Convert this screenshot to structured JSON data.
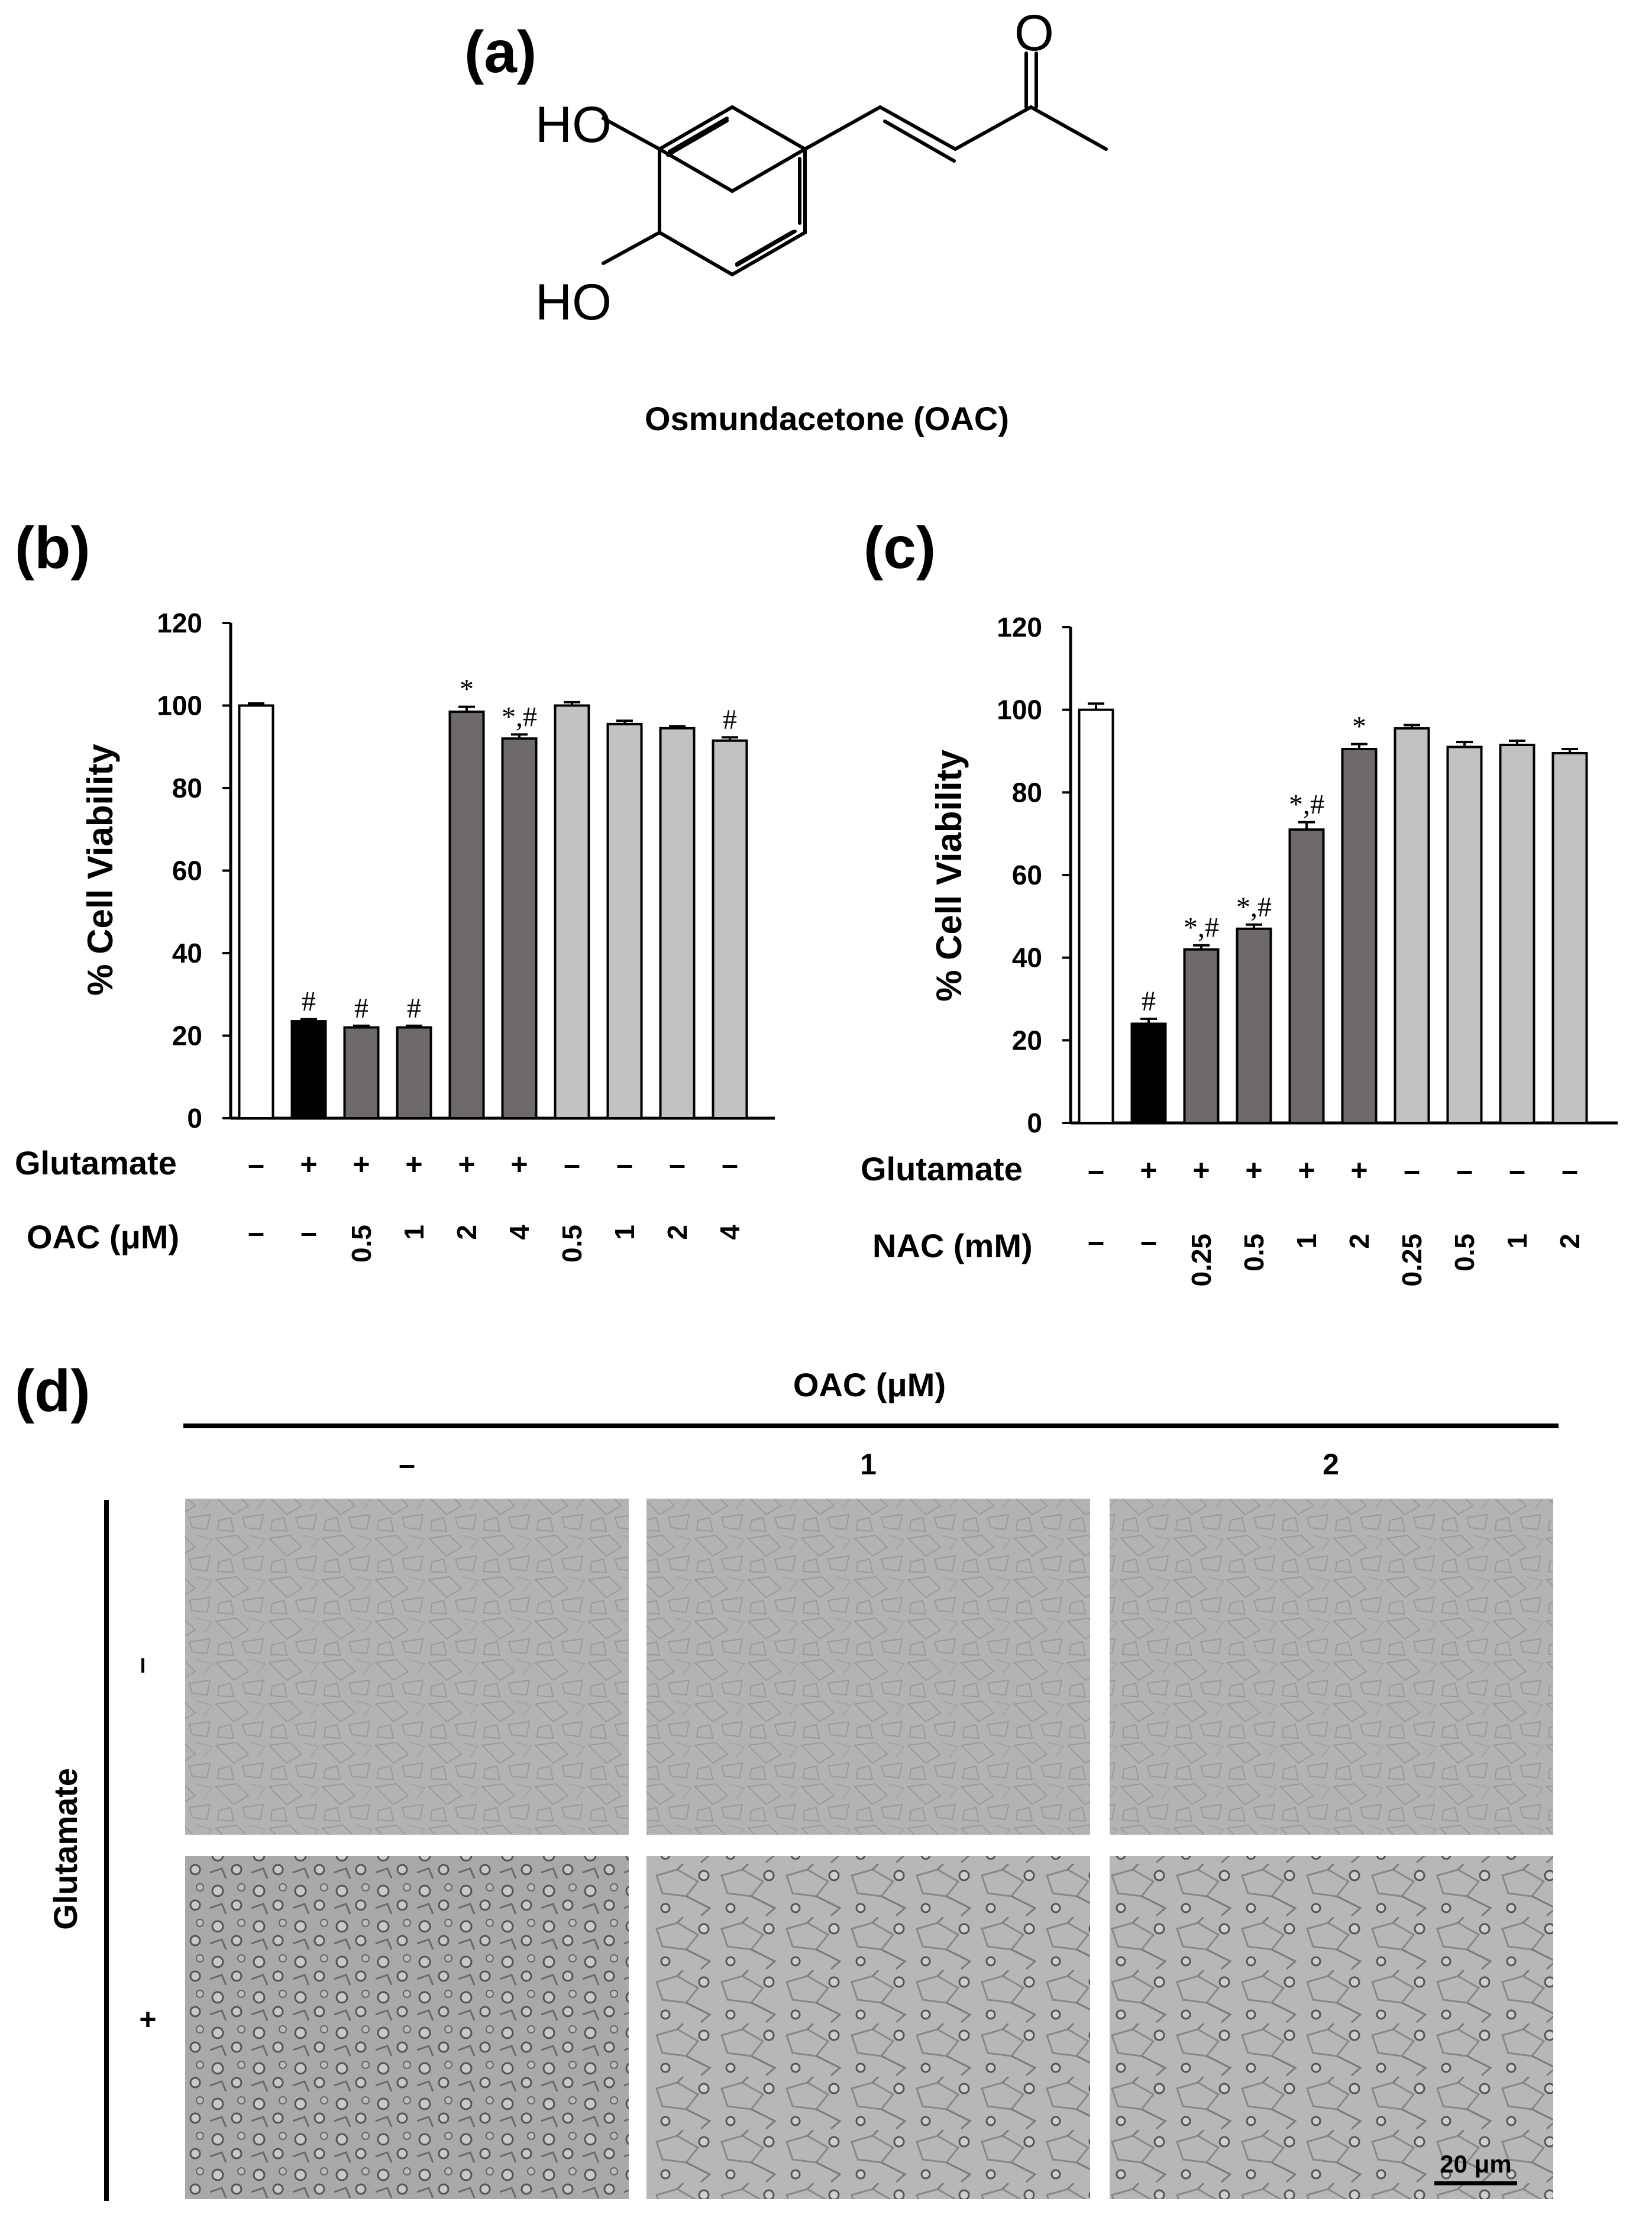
{
  "panels": {
    "a": "(a)",
    "b": "(b)",
    "c": "(c)",
    "d": "(d)"
  },
  "molecule": {
    "name": "Osmundacetone (OAC)",
    "atoms": {
      "oxygen": "O",
      "hydroxyl_top": "HO",
      "hydroxyl_bottom": "HO"
    }
  },
  "chart_data": [
    {
      "id": "b",
      "type": "bar",
      "ylabel": "% Cell Viability",
      "ylim": [
        0,
        120
      ],
      "yticks": [
        0,
        20,
        40,
        60,
        80,
        100,
        120
      ],
      "ytick_labels": [
        "0",
        "20",
        "40",
        "60",
        "80",
        "100",
        "120"
      ],
      "row_labels": [
        "Glutamate",
        "OAC (μM)"
      ],
      "glutamate": [
        "–",
        "+",
        "+",
        "+",
        "+",
        "+",
        "–",
        "–",
        "–",
        "–"
      ],
      "treatment": [
        "–",
        "–",
        "0.5",
        "1",
        "2",
        "4",
        "0.5",
        "1",
        "2",
        "4"
      ],
      "values": [
        100,
        23.5,
        22,
        22,
        98.5,
        92,
        100,
        95.5,
        94.5,
        91.5
      ],
      "errors": [
        0.5,
        0.5,
        0.4,
        0.4,
        1.2,
        1.0,
        0.8,
        0.8,
        0.5,
        0.8
      ],
      "significance": [
        "",
        "#",
        "#",
        "#",
        "*",
        "*,#",
        "",
        "",
        "",
        "#"
      ],
      "colors": [
        "#ffffff",
        "#000000",
        "#6d6a69",
        "#6d6a69",
        "#6d6a69",
        "#6d6a69",
        "#c2c2c2",
        "#c2c2c2",
        "#c2c2c2",
        "#c2c2c2"
      ]
    },
    {
      "id": "c",
      "type": "bar",
      "ylabel": "% Cell Viability",
      "ylim": [
        0,
        120
      ],
      "yticks": [
        0,
        20,
        40,
        60,
        80,
        100,
        120
      ],
      "ytick_labels": [
        "0",
        "20",
        "40",
        "60",
        "80",
        "100",
        "120"
      ],
      "row_labels": [
        "Glutamate",
        "NAC (mM)"
      ],
      "glutamate": [
        "–",
        "+",
        "+",
        "+",
        "+",
        "+",
        "–",
        "–",
        "–",
        "–"
      ],
      "treatment": [
        "–",
        "–",
        "0.25",
        "0.5",
        "1",
        "2",
        "0.25",
        "0.5",
        "1",
        "2"
      ],
      "values": [
        100,
        24,
        42,
        47,
        71,
        90.5,
        95.5,
        91,
        91.5,
        89.5
      ],
      "errors": [
        1.5,
        1.2,
        1.0,
        1.0,
        1.8,
        1.2,
        0.8,
        1.2,
        1.0,
        1.0
      ],
      "significance": [
        "",
        "#",
        "*,#",
        "*,#",
        "*,#",
        "*",
        "",
        "",
        "",
        ""
      ],
      "colors": [
        "#ffffff",
        "#000000",
        "#6d6a69",
        "#6d6a69",
        "#6d6a69",
        "#6d6a69",
        "#c2c2c2",
        "#c2c2c2",
        "#c2c2c2",
        "#c2c2c2"
      ]
    }
  ],
  "micrographs": {
    "header": "OAC (μM)",
    "columns": [
      "–",
      "1",
      "2"
    ],
    "row_axis_label": "Glutamate",
    "rows": [
      "–",
      "+"
    ],
    "scale_bar": "20 μm"
  }
}
